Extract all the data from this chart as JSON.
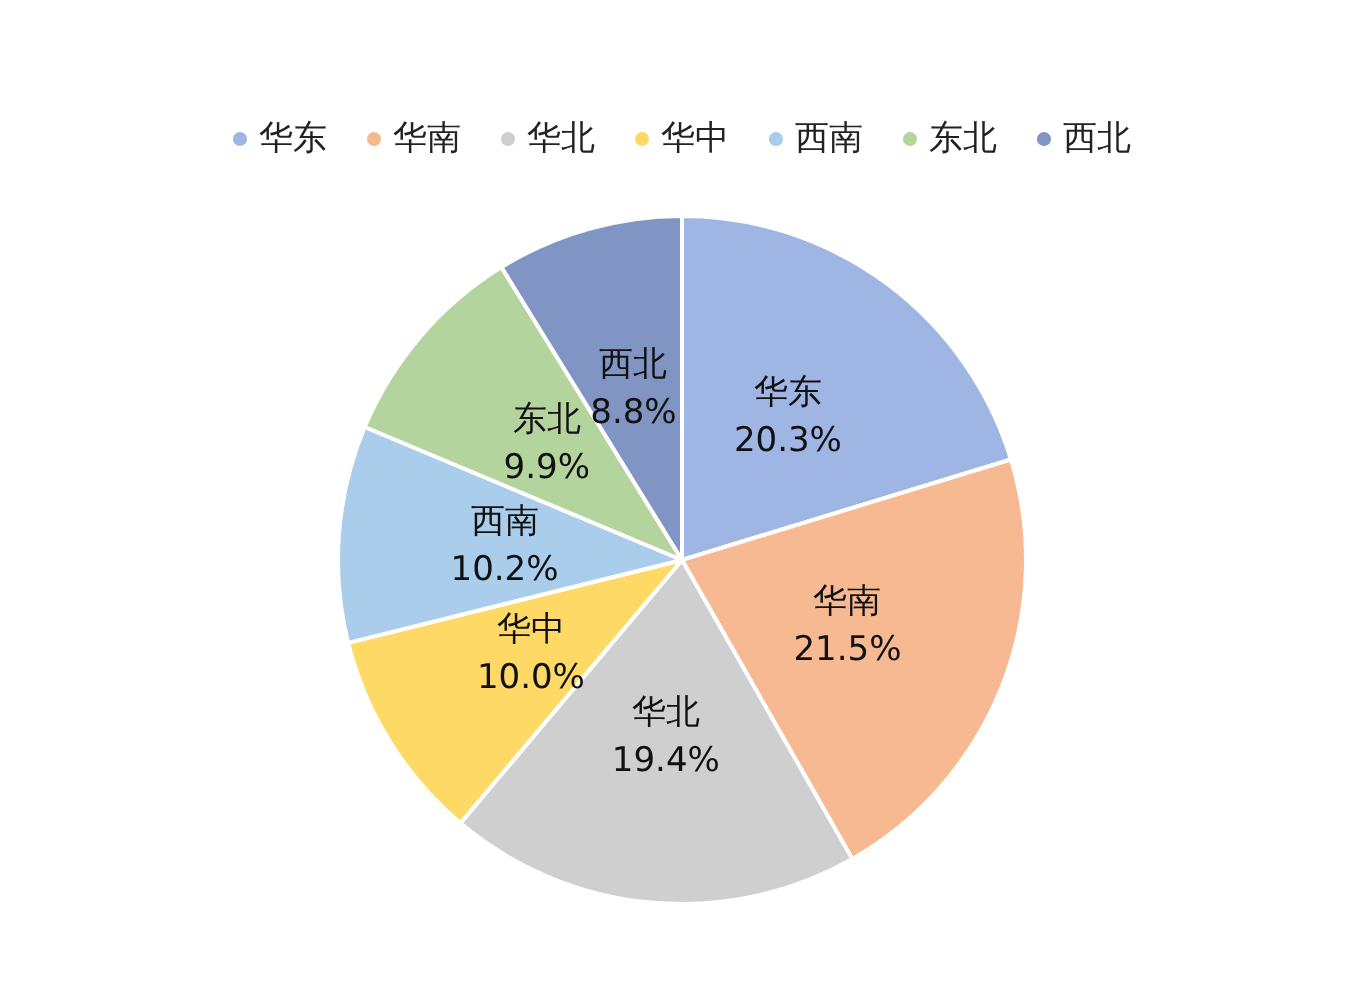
{
  "chart_data": {
    "type": "pie",
    "categories": [
      "华东",
      "华南",
      "华北",
      "华中",
      "西南",
      "东北",
      "西北"
    ],
    "values": [
      20.3,
      21.5,
      19.4,
      10.0,
      10.2,
      9.9,
      8.8
    ],
    "value_labels": [
      "20.3%",
      "21.5%",
      "19.4%",
      "10.0%",
      "10.2%",
      "9.9%",
      "8.8%"
    ],
    "colors": [
      "#9fb6e4",
      "#f6b992",
      "#cfcfcf",
      "#ffd966",
      "#a9cdea",
      "#b3d49c",
      "#8195c4"
    ],
    "legend": "top"
  }
}
